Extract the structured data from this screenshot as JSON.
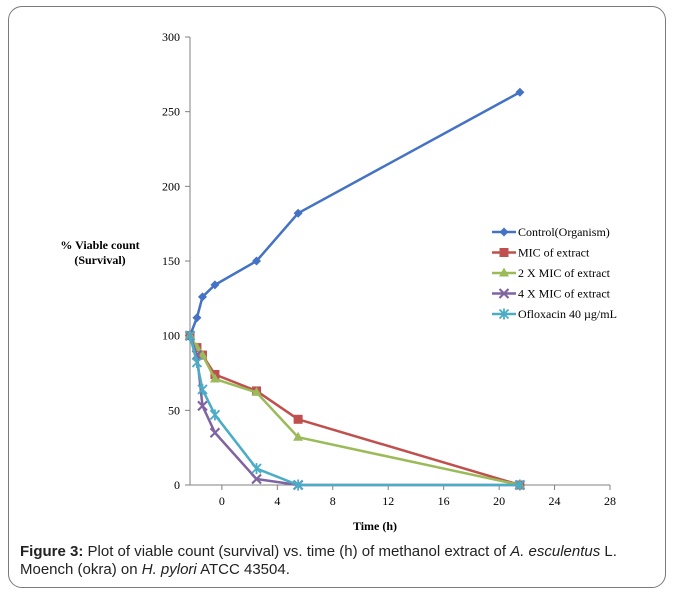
{
  "chart_data": {
    "type": "line",
    "xlabel": "Time (h)",
    "ylabel_line1": "% Viable count",
    "ylabel_line2": "(Survival)",
    "xlim": [
      -2.3,
      28
    ],
    "ylim": [
      0,
      300
    ],
    "xticks": [
      0,
      4,
      8,
      12,
      16,
      20,
      24,
      28
    ],
    "yticks": [
      0,
      50,
      100,
      150,
      200,
      250,
      300
    ],
    "legend_position": "right",
    "series": [
      {
        "name": "Control(Organism)",
        "color": "#4472c4",
        "marker": "diamond",
        "x": [
          -2.3,
          -1.8,
          -1.4,
          -0.5,
          2.5,
          5.5,
          21.5
        ],
        "y": [
          100,
          112,
          126,
          134,
          150,
          182,
          263
        ]
      },
      {
        "name": "MIC of extract",
        "color": "#c0504d",
        "marker": "square",
        "x": [
          -2.3,
          -1.8,
          -1.4,
          -0.5,
          2.5,
          5.5,
          21.5
        ],
        "y": [
          100,
          92,
          87,
          74,
          63,
          44,
          0
        ]
      },
      {
        "name": "2 X MIC of extract",
        "color": "#9bbb59",
        "marker": "triangle",
        "x": [
          -2.3,
          -1.8,
          -1.4,
          -0.5,
          2.5,
          5.5,
          21.5
        ],
        "y": [
          100,
          92,
          87,
          71,
          62,
          32,
          0
        ]
      },
      {
        "name": "4 X MIC of extract",
        "color": "#8064a2",
        "marker": "x",
        "x": [
          -2.3,
          -1.8,
          -1.4,
          -0.5,
          2.5,
          5.5,
          21.5
        ],
        "y": [
          100,
          87,
          53,
          35,
          4,
          0,
          0
        ]
      },
      {
        "name": "Ofloxacin 40 µg/mL",
        "color": "#4bacc6",
        "marker": "star",
        "x": [
          -2.3,
          -1.8,
          -1.4,
          -0.5,
          2.5,
          5.5,
          21.5
        ],
        "y": [
          100,
          82,
          64,
          47,
          11,
          0,
          0
        ]
      }
    ]
  },
  "caption": {
    "label": "Figure 3:",
    "text_1": " Plot of viable count (survival) vs. time (h) of methanol extract of ",
    "species": "A. esculentus",
    "text_2": " L. Moench (okra) on ",
    "organism": "H. pylori",
    "text_3": " ATCC 43504."
  }
}
